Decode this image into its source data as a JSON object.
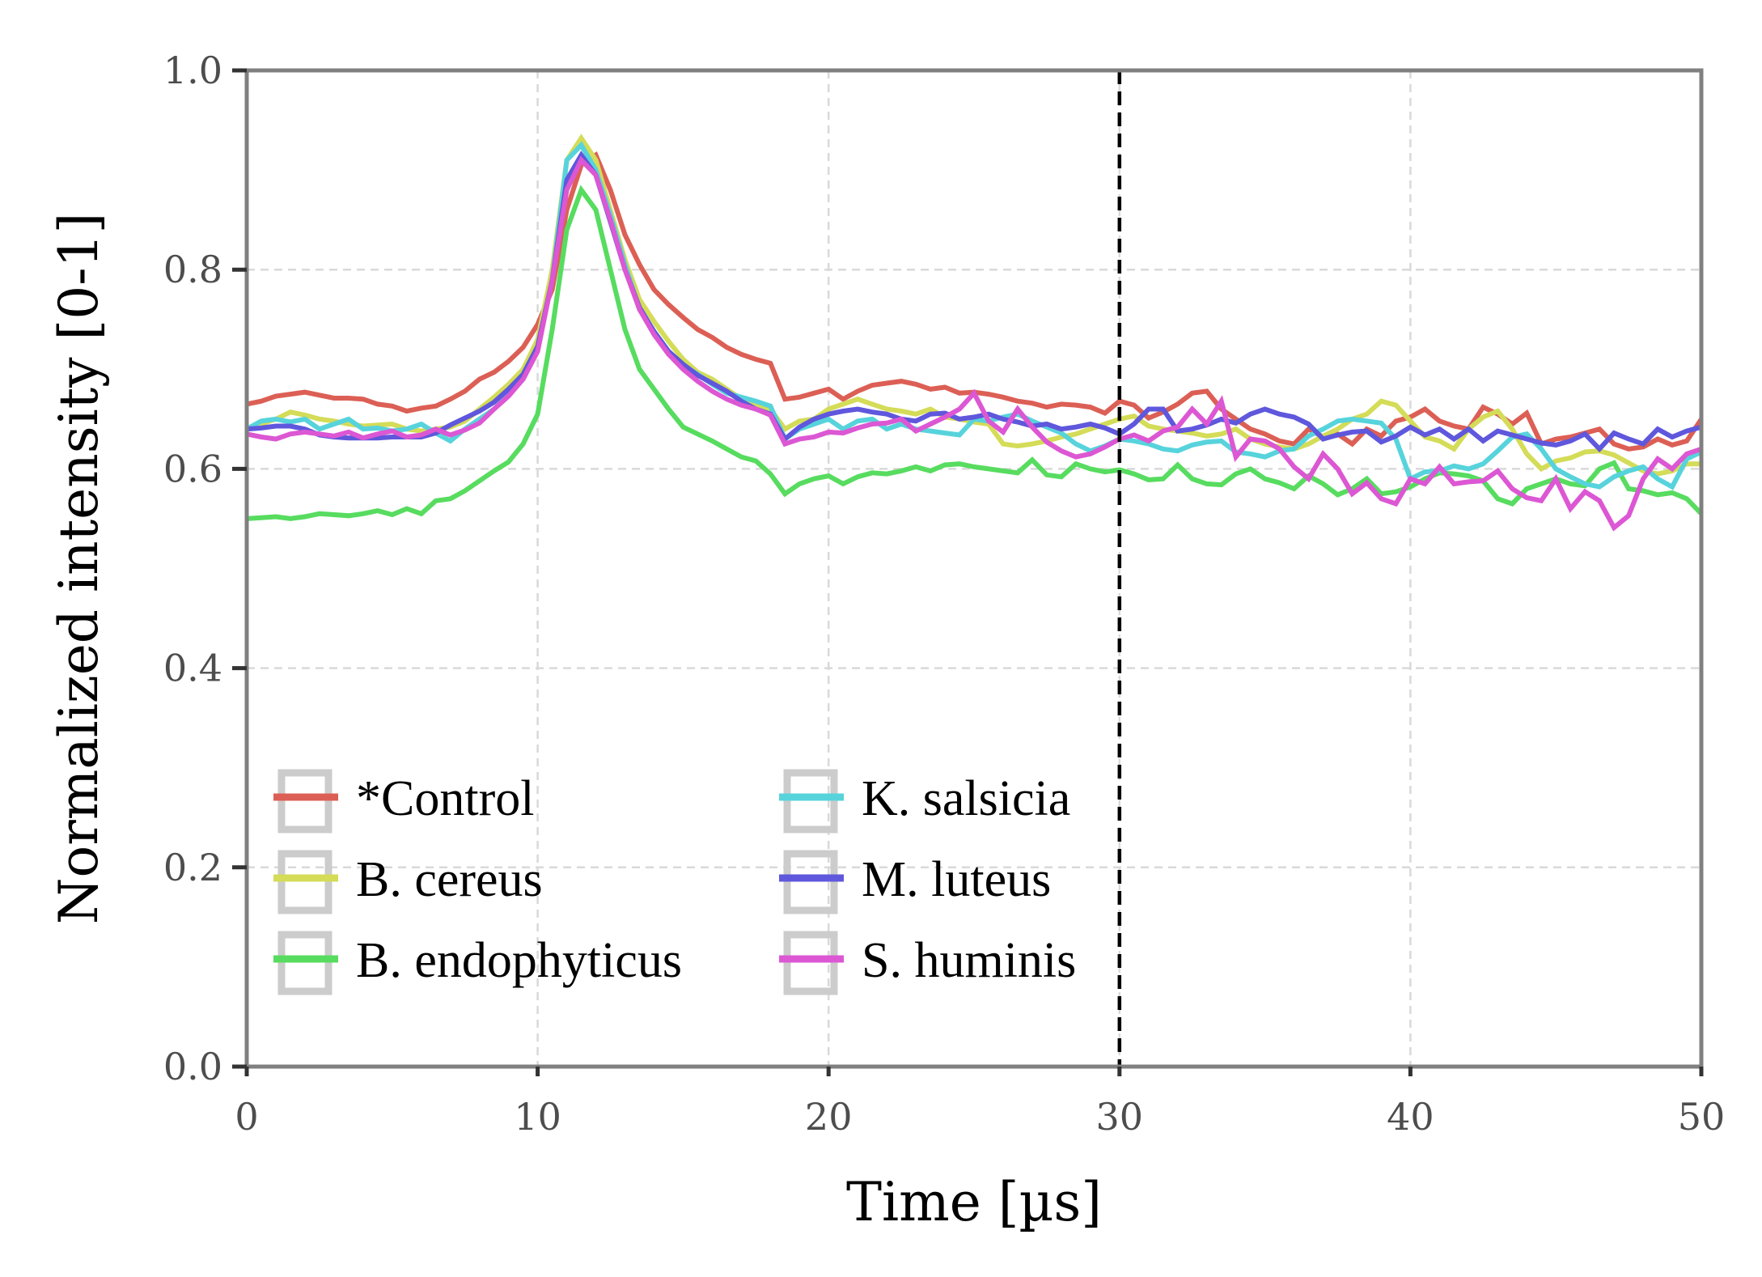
{
  "chart_data": {
    "type": "line",
    "title": "",
    "xlabel": "Time [µs]",
    "ylabel": "Normalized intensity [0-1]",
    "xlim": [
      0,
      50
    ],
    "ylim": [
      0.0,
      1.0
    ],
    "xticks": [
      0,
      10,
      20,
      30,
      40,
      50
    ],
    "xtick_labels": [
      "0",
      "10",
      "20",
      "30",
      "40",
      "50"
    ],
    "yticks": [
      0.0,
      0.2,
      0.4,
      0.6,
      0.8,
      1.0
    ],
    "ytick_labels": [
      "0.0",
      "0.2",
      "0.4",
      "0.6",
      "0.8",
      "1.0"
    ],
    "grid": true,
    "legend_placement": "lower-left",
    "vline": {
      "x": 30,
      "style": "dashed",
      "color": "#000000"
    },
    "x_step": 0.5,
    "series": [
      {
        "name": "*Control",
        "color": "#dc5f55",
        "values": [
          0.665,
          0.668,
          0.673,
          0.675,
          0.677,
          0.674,
          0.671,
          0.671,
          0.67,
          0.665,
          0.663,
          0.658,
          0.661,
          0.663,
          0.67,
          0.678,
          0.69,
          0.697,
          0.708,
          0.722,
          0.745,
          0.78,
          0.86,
          0.905,
          0.915,
          0.88,
          0.835,
          0.805,
          0.78,
          0.765,
          0.752,
          0.74,
          0.732,
          0.722,
          0.715,
          0.71,
          0.706,
          0.67,
          0.672,
          0.676,
          0.68,
          0.67,
          0.678,
          0.684,
          0.686,
          0.688,
          0.685,
          0.68,
          0.682,
          0.676,
          0.677,
          0.675,
          0.672,
          0.668,
          0.666,
          0.662,
          0.665,
          0.664,
          0.662,
          0.656,
          0.668,
          0.664,
          0.651,
          0.657,
          0.665,
          0.676,
          0.678,
          0.66,
          0.65,
          0.64,
          0.635,
          0.628,
          0.625,
          0.64,
          0.632,
          0.635,
          0.625,
          0.64,
          0.633,
          0.648,
          0.652,
          0.66,
          0.648,
          0.643,
          0.64,
          0.662,
          0.655,
          0.645,
          0.656,
          0.625,
          0.63,
          0.632,
          0.636,
          0.64,
          0.625,
          0.62,
          0.622,
          0.63,
          0.624,
          0.628,
          0.65
        ]
      },
      {
        "name": "B. cereus",
        "color": "#d4dc58",
        "values": [
          0.64,
          0.645,
          0.65,
          0.657,
          0.654,
          0.65,
          0.648,
          0.645,
          0.643,
          0.644,
          0.645,
          0.64,
          0.638,
          0.64,
          0.642,
          0.648,
          0.66,
          0.672,
          0.685,
          0.7,
          0.73,
          0.8,
          0.91,
          0.932,
          0.91,
          0.86,
          0.81,
          0.77,
          0.748,
          0.728,
          0.71,
          0.697,
          0.69,
          0.68,
          0.67,
          0.665,
          0.66,
          0.64,
          0.648,
          0.65,
          0.66,
          0.665,
          0.67,
          0.665,
          0.66,
          0.658,
          0.655,
          0.66,
          0.652,
          0.65,
          0.647,
          0.645,
          0.625,
          0.623,
          0.625,
          0.628,
          0.632,
          0.635,
          0.64,
          0.645,
          0.65,
          0.653,
          0.643,
          0.64,
          0.638,
          0.636,
          0.633,
          0.635,
          0.64,
          0.63,
          0.625,
          0.622,
          0.62,
          0.625,
          0.633,
          0.64,
          0.65,
          0.655,
          0.668,
          0.664,
          0.648,
          0.632,
          0.628,
          0.62,
          0.64,
          0.652,
          0.658,
          0.64,
          0.615,
          0.6,
          0.608,
          0.611,
          0.617,
          0.618,
          0.614,
          0.606,
          0.598,
          0.595,
          0.598,
          0.605,
          0.605
        ]
      },
      {
        "name": "B. endophyticus",
        "color": "#57dc5f",
        "values": [
          0.55,
          0.551,
          0.552,
          0.55,
          0.552,
          0.555,
          0.554,
          0.553,
          0.555,
          0.558,
          0.554,
          0.56,
          0.555,
          0.568,
          0.57,
          0.578,
          0.588,
          0.598,
          0.607,
          0.625,
          0.655,
          0.74,
          0.84,
          0.88,
          0.86,
          0.8,
          0.74,
          0.7,
          0.68,
          0.66,
          0.642,
          0.635,
          0.628,
          0.62,
          0.612,
          0.608,
          0.595,
          0.575,
          0.585,
          0.59,
          0.593,
          0.585,
          0.592,
          0.596,
          0.595,
          0.598,
          0.602,
          0.598,
          0.604,
          0.605,
          0.602,
          0.6,
          0.598,
          0.596,
          0.609,
          0.594,
          0.592,
          0.605,
          0.6,
          0.597,
          0.599,
          0.595,
          0.589,
          0.59,
          0.604,
          0.59,
          0.585,
          0.584,
          0.595,
          0.6,
          0.59,
          0.586,
          0.58,
          0.593,
          0.585,
          0.574,
          0.58,
          0.59,
          0.575,
          0.577,
          0.582,
          0.59,
          0.596,
          0.595,
          0.593,
          0.588,
          0.57,
          0.565,
          0.58,
          0.585,
          0.59,
          0.585,
          0.583,
          0.6,
          0.606,
          0.58,
          0.578,
          0.574,
          0.576,
          0.57,
          0.555
        ]
      },
      {
        "name": "K. salsicia",
        "color": "#57d3dc",
        "values": [
          0.64,
          0.648,
          0.65,
          0.647,
          0.65,
          0.64,
          0.645,
          0.65,
          0.64,
          0.641,
          0.638,
          0.64,
          0.645,
          0.636,
          0.628,
          0.64,
          0.65,
          0.66,
          0.674,
          0.69,
          0.72,
          0.79,
          0.91,
          0.925,
          0.9,
          0.855,
          0.805,
          0.76,
          0.738,
          0.718,
          0.704,
          0.695,
          0.685,
          0.676,
          0.672,
          0.668,
          0.663,
          0.63,
          0.64,
          0.645,
          0.65,
          0.64,
          0.648,
          0.65,
          0.64,
          0.645,
          0.64,
          0.638,
          0.636,
          0.634,
          0.65,
          0.648,
          0.652,
          0.655,
          0.648,
          0.642,
          0.636,
          0.625,
          0.618,
          0.623,
          0.63,
          0.628,
          0.625,
          0.62,
          0.618,
          0.624,
          0.627,
          0.628,
          0.617,
          0.615,
          0.612,
          0.618,
          0.62,
          0.633,
          0.64,
          0.648,
          0.65,
          0.648,
          0.646,
          0.63,
          0.59,
          0.597,
          0.598,
          0.603,
          0.6,
          0.605,
          0.618,
          0.632,
          0.635,
          0.62,
          0.6,
          0.592,
          0.585,
          0.582,
          0.592,
          0.598,
          0.602,
          0.59,
          0.582,
          0.61,
          0.617
        ]
      },
      {
        "name": "M. luteus",
        "color": "#5f57dc",
        "values": [
          0.64,
          0.641,
          0.643,
          0.643,
          0.64,
          0.634,
          0.632,
          0.631,
          0.631,
          0.631,
          0.632,
          0.632,
          0.632,
          0.636,
          0.644,
          0.651,
          0.658,
          0.667,
          0.68,
          0.695,
          0.723,
          0.79,
          0.89,
          0.915,
          0.895,
          0.848,
          0.8,
          0.762,
          0.738,
          0.718,
          0.705,
          0.694,
          0.686,
          0.678,
          0.668,
          0.66,
          0.655,
          0.63,
          0.642,
          0.65,
          0.655,
          0.658,
          0.66,
          0.657,
          0.655,
          0.65,
          0.648,
          0.655,
          0.656,
          0.65,
          0.652,
          0.655,
          0.65,
          0.647,
          0.643,
          0.645,
          0.64,
          0.642,
          0.645,
          0.641,
          0.635,
          0.645,
          0.66,
          0.66,
          0.638,
          0.64,
          0.644,
          0.65,
          0.646,
          0.655,
          0.66,
          0.655,
          0.652,
          0.645,
          0.63,
          0.634,
          0.637,
          0.638,
          0.627,
          0.633,
          0.642,
          0.634,
          0.64,
          0.63,
          0.64,
          0.628,
          0.638,
          0.634,
          0.63,
          0.626,
          0.624,
          0.628,
          0.635,
          0.62,
          0.636,
          0.63,
          0.625,
          0.64,
          0.632,
          0.638,
          0.642
        ]
      },
      {
        "name": "S. huminis",
        "color": "#dc57d3",
        "values": [
          0.635,
          0.632,
          0.63,
          0.635,
          0.637,
          0.635,
          0.633,
          0.637,
          0.631,
          0.635,
          0.638,
          0.632,
          0.634,
          0.64,
          0.634,
          0.639,
          0.646,
          0.66,
          0.673,
          0.69,
          0.718,
          0.79,
          0.88,
          0.91,
          0.895,
          0.85,
          0.8,
          0.76,
          0.735,
          0.715,
          0.7,
          0.688,
          0.678,
          0.67,
          0.664,
          0.66,
          0.654,
          0.625,
          0.63,
          0.632,
          0.637,
          0.636,
          0.641,
          0.645,
          0.646,
          0.65,
          0.638,
          0.645,
          0.652,
          0.66,
          0.676,
          0.648,
          0.637,
          0.66,
          0.642,
          0.627,
          0.618,
          0.612,
          0.615,
          0.622,
          0.63,
          0.634,
          0.628,
          0.638,
          0.642,
          0.66,
          0.645,
          0.668,
          0.612,
          0.63,
          0.628,
          0.62,
          0.602,
          0.59,
          0.615,
          0.6,
          0.575,
          0.586,
          0.57,
          0.565,
          0.59,
          0.585,
          0.602,
          0.585,
          0.587,
          0.588,
          0.598,
          0.58,
          0.571,
          0.568,
          0.59,
          0.56,
          0.577,
          0.568,
          0.541,
          0.553,
          0.59,
          0.61,
          0.6,
          0.615,
          0.62
        ]
      }
    ]
  }
}
